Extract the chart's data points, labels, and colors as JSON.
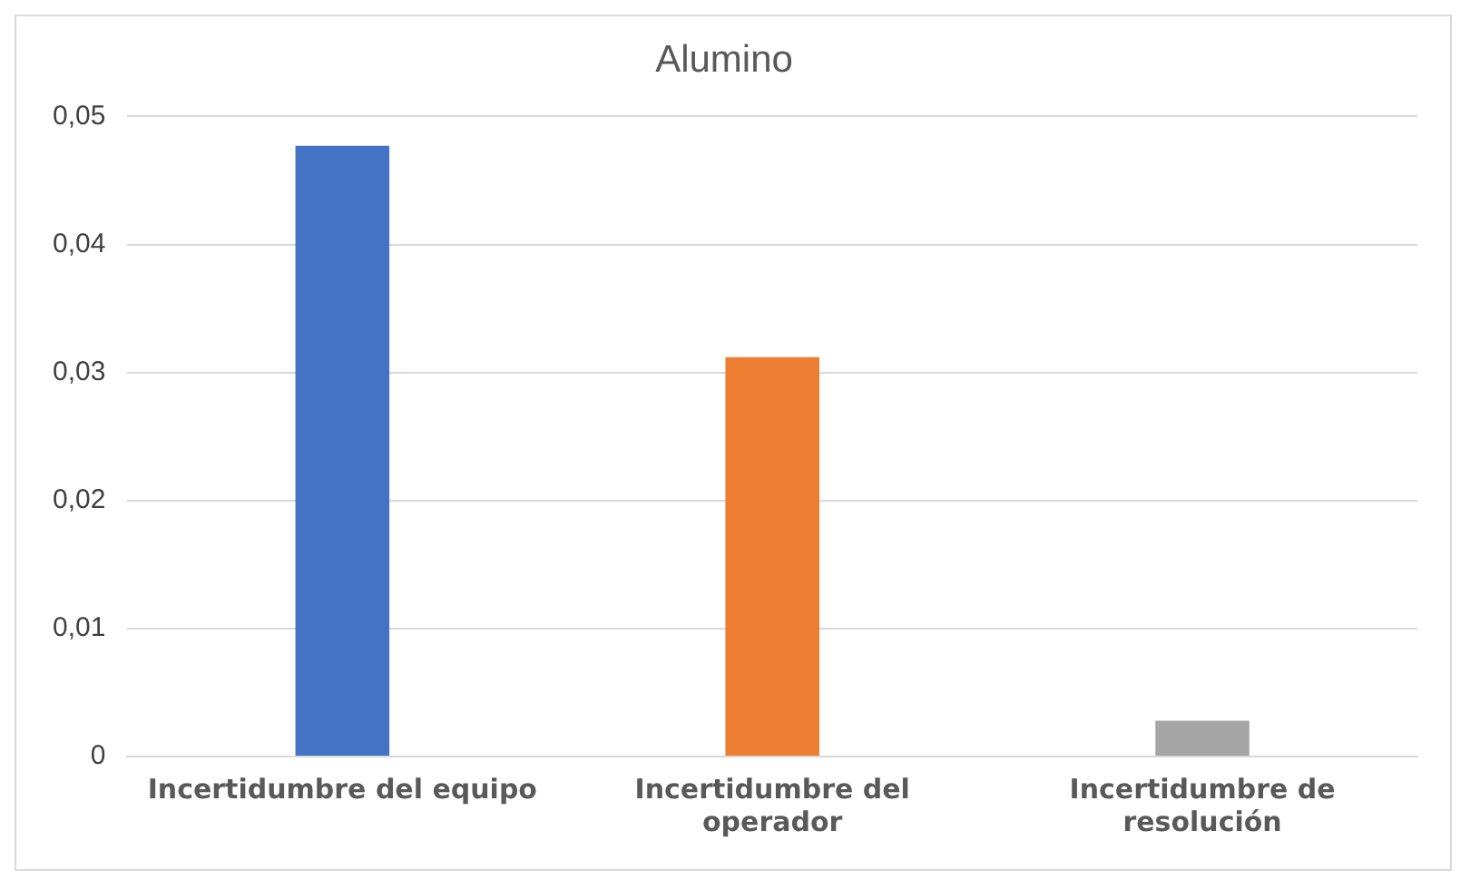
{
  "chart_data": {
    "type": "bar",
    "title": "Alumino",
    "categories": [
      "Incertidumbre del equipo",
      "Incertidumbre del operador",
      "Incertidumbre de resolución"
    ],
    "values": [
      0.0477,
      0.0312,
      0.0028
    ],
    "colors": [
      "#4472c4",
      "#ed7d31",
      "#a5a5a5"
    ],
    "ylim": [
      0,
      0.05
    ],
    "yticks": [
      {
        "value": 0,
        "label": "0"
      },
      {
        "value": 0.01,
        "label": "0,01"
      },
      {
        "value": 0.02,
        "label": "0,02"
      },
      {
        "value": 0.03,
        "label": "0,03"
      },
      {
        "value": 0.04,
        "label": "0,04"
      },
      {
        "value": 0.05,
        "label": "0,05"
      }
    ],
    "grid": "y",
    "legend": false
  }
}
